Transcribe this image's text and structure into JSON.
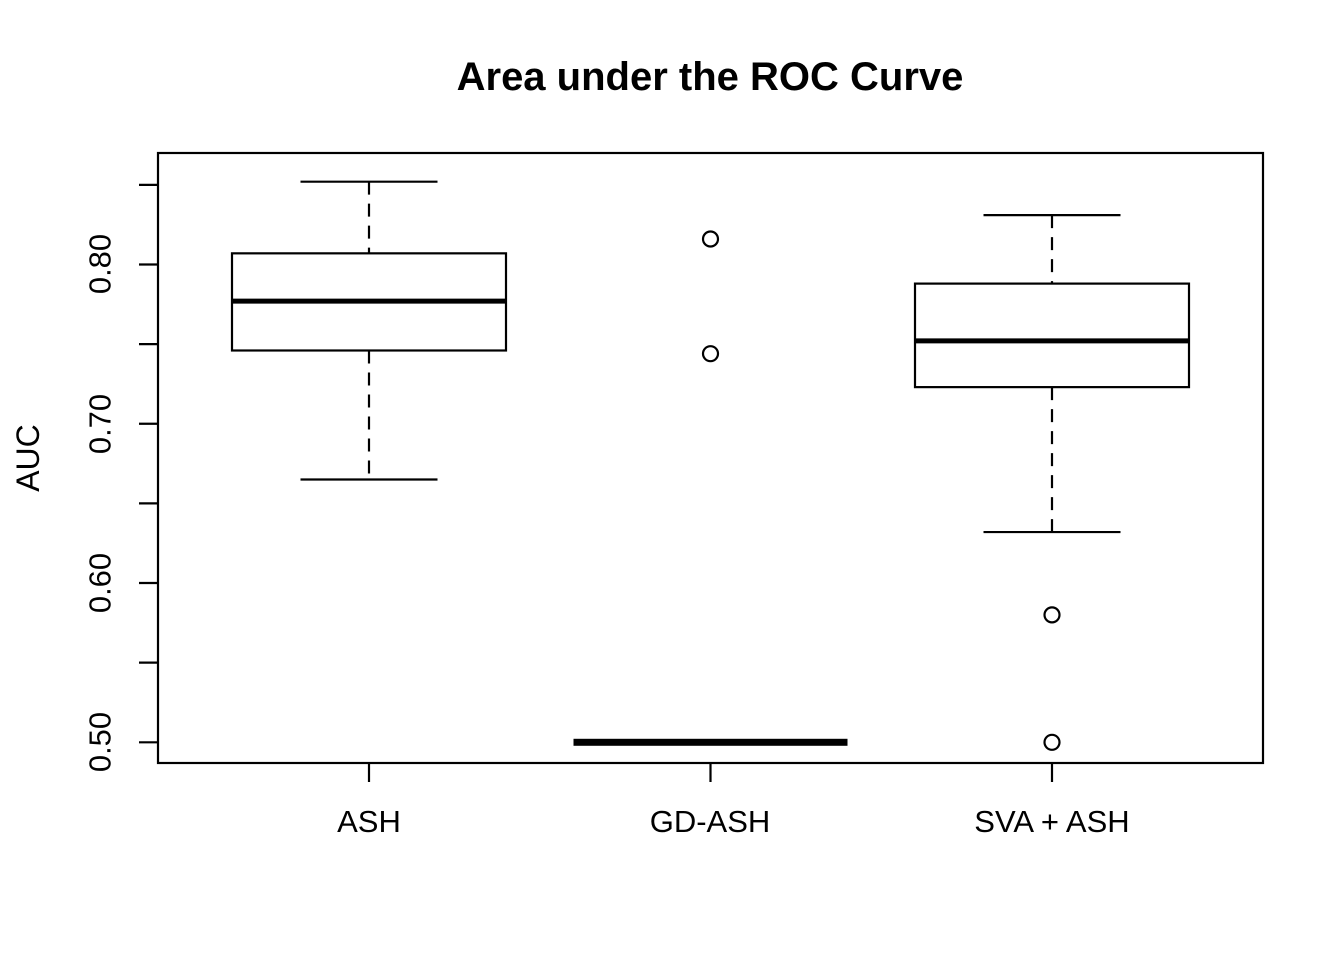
{
  "chart_data": {
    "type": "boxplot",
    "title": "Area under the ROC Curve",
    "xlabel": "",
    "ylabel": "AUC",
    "categories": [
      "ASH",
      "GD-ASH",
      "SVA + ASH"
    ],
    "ylim": [
      0.487,
      0.87
    ],
    "yticks": [
      0.5,
      0.55,
      0.6,
      0.65,
      0.7,
      0.75,
      0.8,
      0.85
    ],
    "ytick_labels_major": [
      "0.50",
      "0.60",
      "0.70",
      "0.80"
    ],
    "ytick_major_values": [
      0.5,
      0.6,
      0.7,
      0.8
    ],
    "grid": "off",
    "legend": "none",
    "colors": {
      "foreground": "#000000",
      "background": "#ffffff",
      "box_fill": "#ffffff"
    },
    "series": [
      {
        "name": "ASH",
        "lower_whisker": 0.665,
        "q1": 0.746,
        "median": 0.777,
        "q3": 0.807,
        "upper_whisker": 0.852,
        "outliers": []
      },
      {
        "name": "GD-ASH",
        "lower_whisker": 0.5,
        "q1": 0.5,
        "median": 0.5,
        "q3": 0.5,
        "upper_whisker": 0.5,
        "outliers": [
          0.816,
          0.744
        ]
      },
      {
        "name": "SVA + ASH",
        "lower_whisker": 0.632,
        "q1": 0.723,
        "median": 0.752,
        "q3": 0.788,
        "upper_whisker": 0.831,
        "outliers": [
          0.58,
          0.5
        ]
      }
    ]
  }
}
